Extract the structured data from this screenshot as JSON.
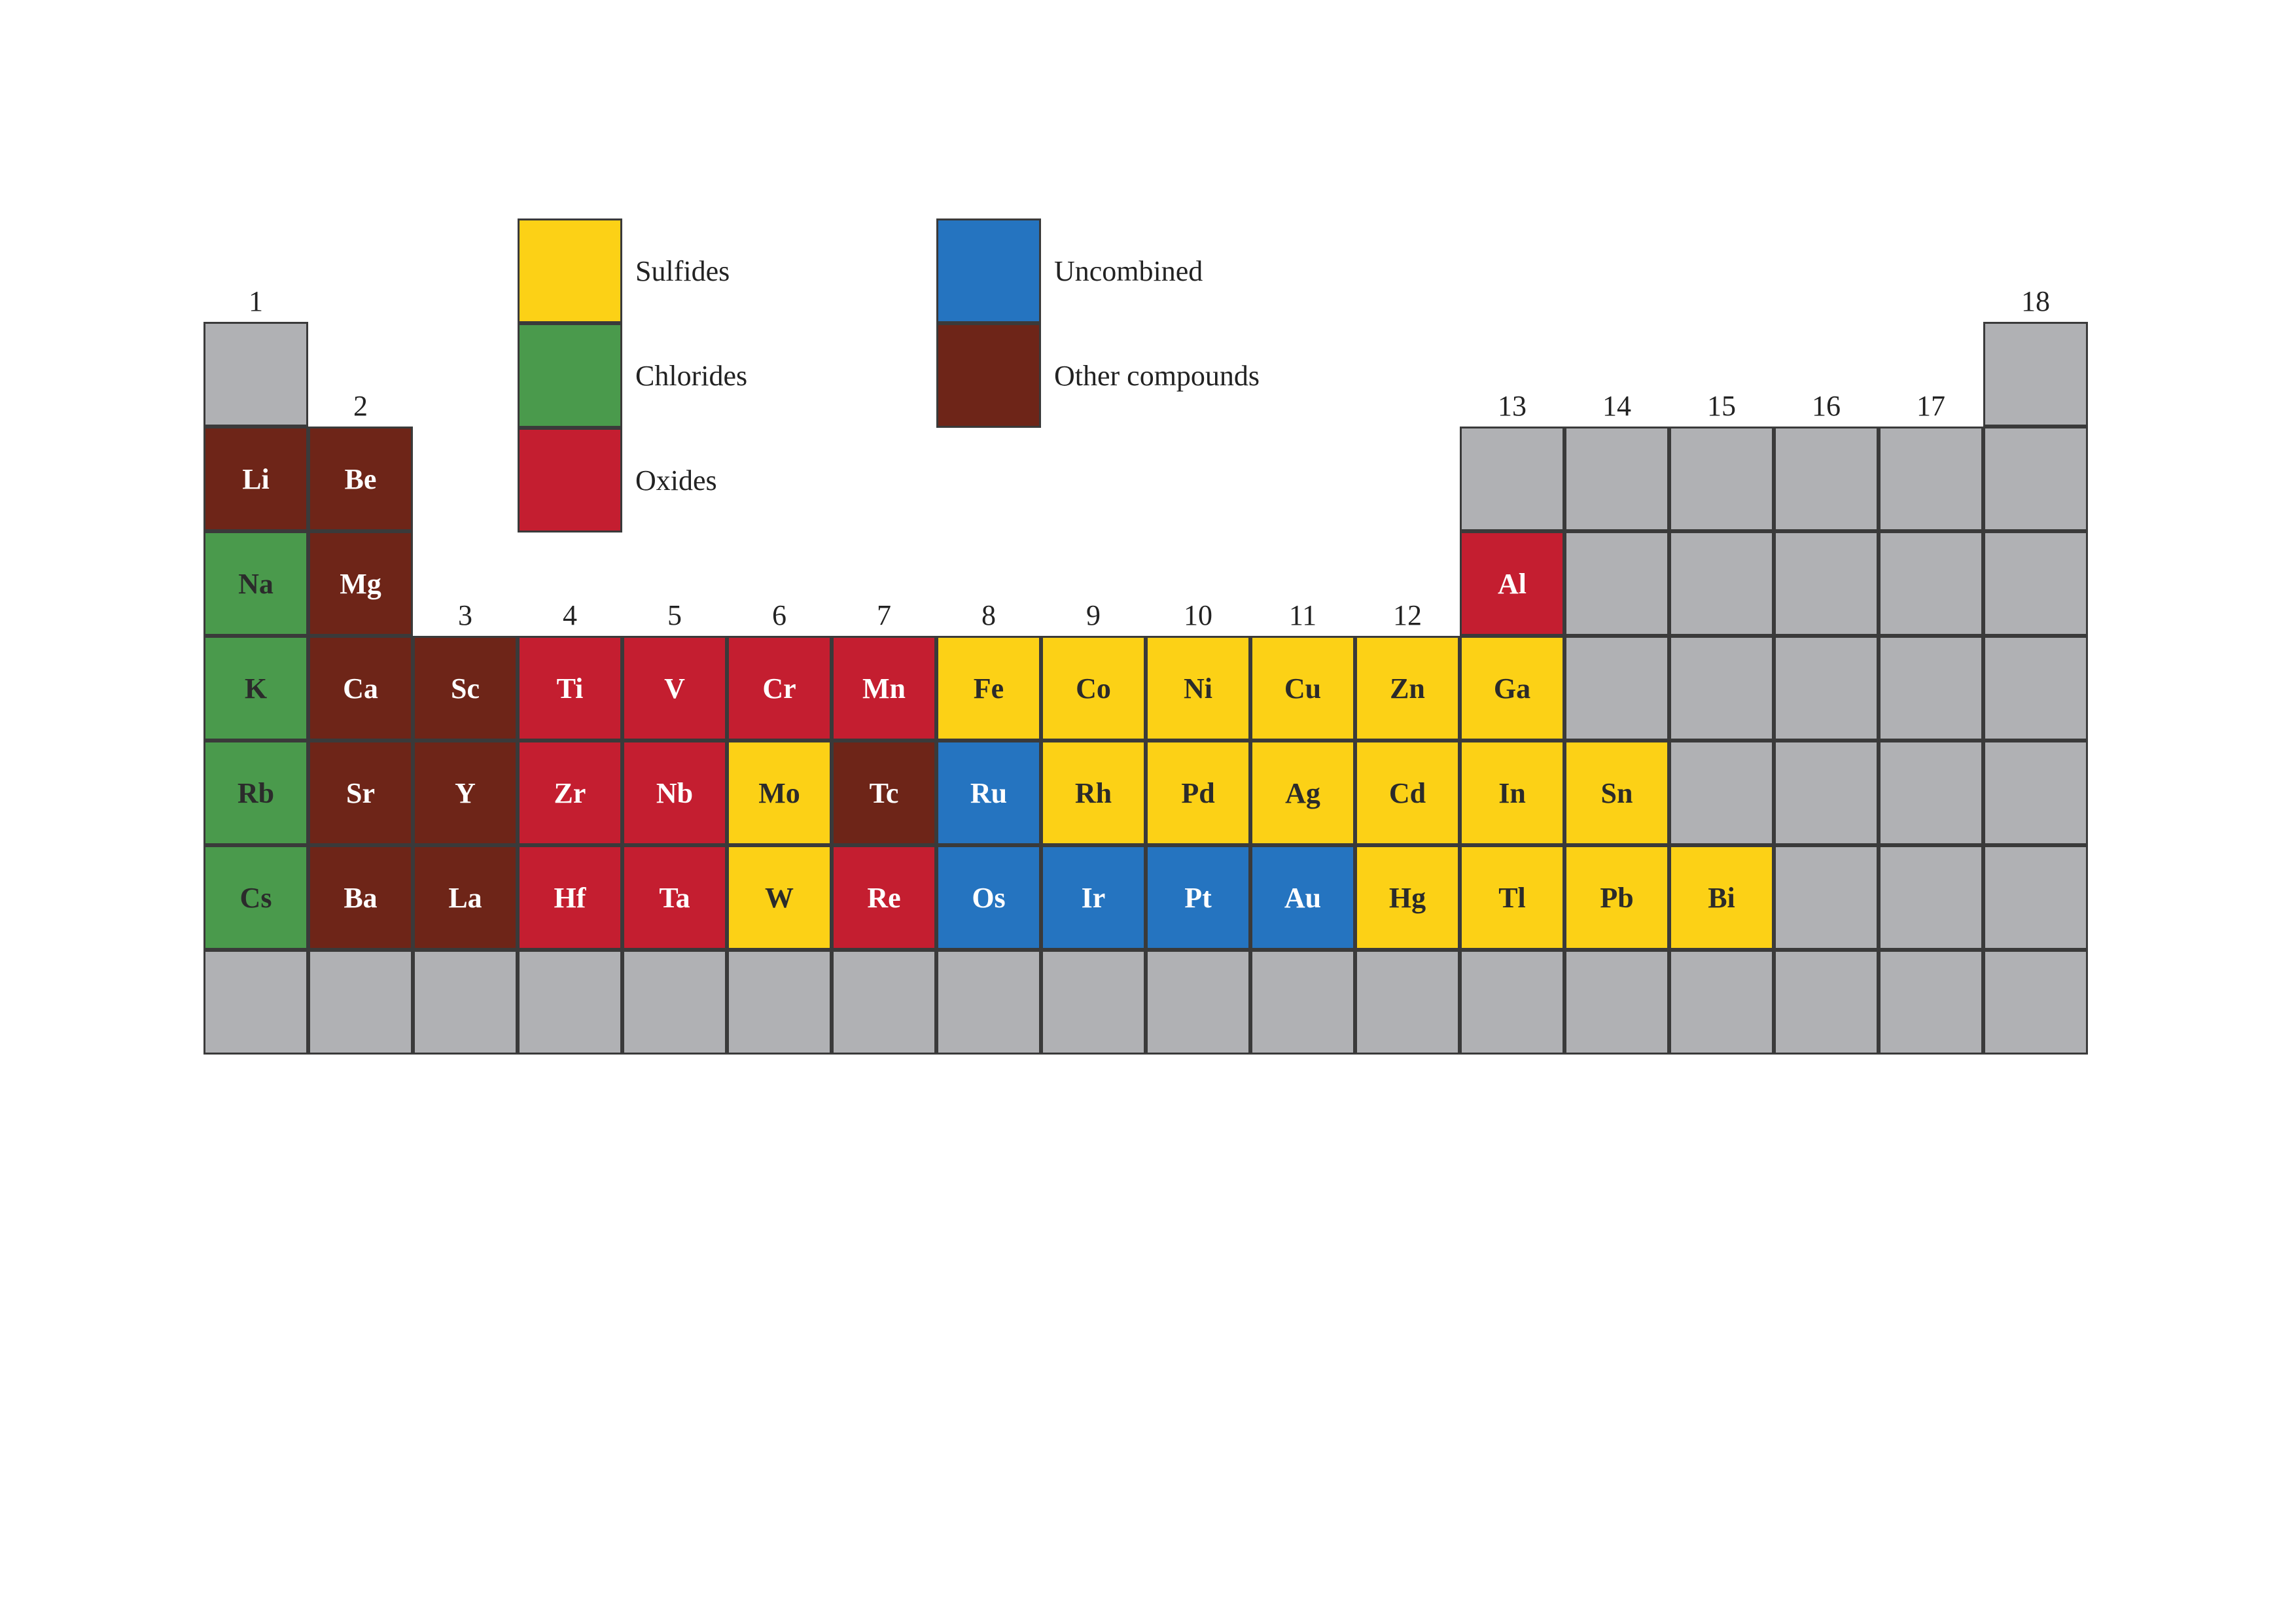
{
  "colors": {
    "sulfides": "#fcd116",
    "chlorides": "#4a9a4c",
    "oxides": "#c41e30",
    "uncombined": "#2574c0",
    "other": "#6e2518",
    "empty": "#b0b1b4"
  },
  "legend": [
    {
      "key": "sulfides",
      "label": "Sulfides"
    },
    {
      "key": "chlorides",
      "label": "Chlorides"
    },
    {
      "key": "oxides",
      "label": "Oxides"
    },
    {
      "key": "uncombined",
      "label": "Uncombined"
    },
    {
      "key": "other",
      "label": "Other compounds"
    }
  ],
  "group_labels": [
    "1",
    "2",
    "3",
    "4",
    "5",
    "6",
    "7",
    "8",
    "9",
    "10",
    "11",
    "12",
    "13",
    "14",
    "15",
    "16",
    "17",
    "18"
  ],
  "elements": [
    {
      "symbol": "",
      "group": 1,
      "period": 1,
      "type": "empty"
    },
    {
      "symbol": "",
      "group": 18,
      "period": 1,
      "type": "empty"
    },
    {
      "symbol": "Li",
      "group": 1,
      "period": 2,
      "type": "other"
    },
    {
      "symbol": "Be",
      "group": 2,
      "period": 2,
      "type": "other"
    },
    {
      "symbol": "",
      "group": 13,
      "period": 2,
      "type": "empty"
    },
    {
      "symbol": "",
      "group": 14,
      "period": 2,
      "type": "empty"
    },
    {
      "symbol": "",
      "group": 15,
      "period": 2,
      "type": "empty"
    },
    {
      "symbol": "",
      "group": 16,
      "period": 2,
      "type": "empty"
    },
    {
      "symbol": "",
      "group": 17,
      "period": 2,
      "type": "empty"
    },
    {
      "symbol": "",
      "group": 18,
      "period": 2,
      "type": "empty"
    },
    {
      "symbol": "Na",
      "group": 1,
      "period": 3,
      "type": "chlorides"
    },
    {
      "symbol": "Mg",
      "group": 2,
      "period": 3,
      "type": "other"
    },
    {
      "symbol": "Al",
      "group": 13,
      "period": 3,
      "type": "oxides"
    },
    {
      "symbol": "",
      "group": 14,
      "period": 3,
      "type": "empty"
    },
    {
      "symbol": "",
      "group": 15,
      "period": 3,
      "type": "empty"
    },
    {
      "symbol": "",
      "group": 16,
      "period": 3,
      "type": "empty"
    },
    {
      "symbol": "",
      "group": 17,
      "period": 3,
      "type": "empty"
    },
    {
      "symbol": "",
      "group": 18,
      "period": 3,
      "type": "empty"
    },
    {
      "symbol": "K",
      "group": 1,
      "period": 4,
      "type": "chlorides"
    },
    {
      "symbol": "Ca",
      "group": 2,
      "period": 4,
      "type": "other"
    },
    {
      "symbol": "Sc",
      "group": 3,
      "period": 4,
      "type": "other"
    },
    {
      "symbol": "Ti",
      "group": 4,
      "period": 4,
      "type": "oxides"
    },
    {
      "symbol": "V",
      "group": 5,
      "period": 4,
      "type": "oxides"
    },
    {
      "symbol": "Cr",
      "group": 6,
      "period": 4,
      "type": "oxides"
    },
    {
      "symbol": "Mn",
      "group": 7,
      "period": 4,
      "type": "oxides"
    },
    {
      "symbol": "Fe",
      "group": 8,
      "period": 4,
      "type": "sulfides"
    },
    {
      "symbol": "Co",
      "group": 9,
      "period": 4,
      "type": "sulfides"
    },
    {
      "symbol": "Ni",
      "group": 10,
      "period": 4,
      "type": "sulfides"
    },
    {
      "symbol": "Cu",
      "group": 11,
      "period": 4,
      "type": "sulfides"
    },
    {
      "symbol": "Zn",
      "group": 12,
      "period": 4,
      "type": "sulfides"
    },
    {
      "symbol": "Ga",
      "group": 13,
      "period": 4,
      "type": "sulfides"
    },
    {
      "symbol": "",
      "group": 14,
      "period": 4,
      "type": "empty"
    },
    {
      "symbol": "",
      "group": 15,
      "period": 4,
      "type": "empty"
    },
    {
      "symbol": "",
      "group": 16,
      "period": 4,
      "type": "empty"
    },
    {
      "symbol": "",
      "group": 17,
      "period": 4,
      "type": "empty"
    },
    {
      "symbol": "",
      "group": 18,
      "period": 4,
      "type": "empty"
    },
    {
      "symbol": "Rb",
      "group": 1,
      "period": 5,
      "type": "chlorides"
    },
    {
      "symbol": "Sr",
      "group": 2,
      "period": 5,
      "type": "other"
    },
    {
      "symbol": "Y",
      "group": 3,
      "period": 5,
      "type": "other"
    },
    {
      "symbol": "Zr",
      "group": 4,
      "period": 5,
      "type": "oxides"
    },
    {
      "symbol": "Nb",
      "group": 5,
      "period": 5,
      "type": "oxides"
    },
    {
      "symbol": "Mo",
      "group": 6,
      "period": 5,
      "type": "sulfides"
    },
    {
      "symbol": "Tc",
      "group": 7,
      "period": 5,
      "type": "other"
    },
    {
      "symbol": "Ru",
      "group": 8,
      "period": 5,
      "type": "uncombined"
    },
    {
      "symbol": "Rh",
      "group": 9,
      "period": 5,
      "type": "sulfides"
    },
    {
      "symbol": "Pd",
      "group": 10,
      "period": 5,
      "type": "sulfides"
    },
    {
      "symbol": "Ag",
      "group": 11,
      "period": 5,
      "type": "sulfides"
    },
    {
      "symbol": "Cd",
      "group": 12,
      "period": 5,
      "type": "sulfides"
    },
    {
      "symbol": "In",
      "group": 13,
      "period": 5,
      "type": "sulfides"
    },
    {
      "symbol": "Sn",
      "group": 14,
      "period": 5,
      "type": "sulfides"
    },
    {
      "symbol": "",
      "group": 15,
      "period": 5,
      "type": "empty"
    },
    {
      "symbol": "",
      "group": 16,
      "period": 5,
      "type": "empty"
    },
    {
      "symbol": "",
      "group": 17,
      "period": 5,
      "type": "empty"
    },
    {
      "symbol": "",
      "group": 18,
      "period": 5,
      "type": "empty"
    },
    {
      "symbol": "Cs",
      "group": 1,
      "period": 6,
      "type": "chlorides"
    },
    {
      "symbol": "Ba",
      "group": 2,
      "period": 6,
      "type": "other"
    },
    {
      "symbol": "La",
      "group": 3,
      "period": 6,
      "type": "other"
    },
    {
      "symbol": "Hf",
      "group": 4,
      "period": 6,
      "type": "oxides"
    },
    {
      "symbol": "Ta",
      "group": 5,
      "period": 6,
      "type": "oxides"
    },
    {
      "symbol": "W",
      "group": 6,
      "period": 6,
      "type": "sulfides"
    },
    {
      "symbol": "Re",
      "group": 7,
      "period": 6,
      "type": "oxides"
    },
    {
      "symbol": "Os",
      "group": 8,
      "period": 6,
      "type": "uncombined"
    },
    {
      "symbol": "Ir",
      "group": 9,
      "period": 6,
      "type": "uncombined"
    },
    {
      "symbol": "Pt",
      "group": 10,
      "period": 6,
      "type": "uncombined"
    },
    {
      "symbol": "Au",
      "group": 11,
      "period": 6,
      "type": "uncombined"
    },
    {
      "symbol": "Hg",
      "group": 12,
      "period": 6,
      "type": "sulfides"
    },
    {
      "symbol": "Tl",
      "group": 13,
      "period": 6,
      "type": "sulfides"
    },
    {
      "symbol": "Pb",
      "group": 14,
      "period": 6,
      "type": "sulfides"
    },
    {
      "symbol": "Bi",
      "group": 15,
      "period": 6,
      "type": "sulfides"
    },
    {
      "symbol": "",
      "group": 16,
      "period": 6,
      "type": "empty"
    },
    {
      "symbol": "",
      "group": 17,
      "period": 6,
      "type": "empty"
    },
    {
      "symbol": "",
      "group": 18,
      "period": 6,
      "type": "empty"
    },
    {
      "symbol": "",
      "group": 1,
      "period": 7,
      "type": "empty"
    },
    {
      "symbol": "",
      "group": 2,
      "period": 7,
      "type": "empty"
    },
    {
      "symbol": "",
      "group": 3,
      "period": 7,
      "type": "empty"
    },
    {
      "symbol": "",
      "group": 4,
      "period": 7,
      "type": "empty"
    },
    {
      "symbol": "",
      "group": 5,
      "period": 7,
      "type": "empty"
    },
    {
      "symbol": "",
      "group": 6,
      "period": 7,
      "type": "empty"
    },
    {
      "symbol": "",
      "group": 7,
      "period": 7,
      "type": "empty"
    },
    {
      "symbol": "",
      "group": 8,
      "period": 7,
      "type": "empty"
    },
    {
      "symbol": "",
      "group": 9,
      "period": 7,
      "type": "empty"
    },
    {
      "symbol": "",
      "group": 10,
      "period": 7,
      "type": "empty"
    },
    {
      "symbol": "",
      "group": 11,
      "period": 7,
      "type": "empty"
    },
    {
      "symbol": "",
      "group": 12,
      "period": 7,
      "type": "empty"
    },
    {
      "symbol": "",
      "group": 13,
      "period": 7,
      "type": "empty"
    },
    {
      "symbol": "",
      "group": 14,
      "period": 7,
      "type": "empty"
    },
    {
      "symbol": "",
      "group": 15,
      "period": 7,
      "type": "empty"
    },
    {
      "symbol": "",
      "group": 16,
      "period": 7,
      "type": "empty"
    },
    {
      "symbol": "",
      "group": 17,
      "period": 7,
      "type": "empty"
    },
    {
      "symbol": "",
      "group": 18,
      "period": 7,
      "type": "empty"
    }
  ]
}
